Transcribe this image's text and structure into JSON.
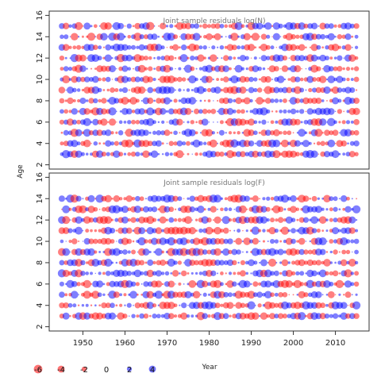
{
  "chart_data": {
    "type": "scatter",
    "xlabel": "Year",
    "ylabel": "Age",
    "xlim": [
      1942,
      2018
    ],
    "ylim": [
      1.6,
      16.4
    ],
    "x_ticks": [
      1950,
      1960,
      1970,
      1980,
      1990,
      2000,
      2010
    ],
    "y_ticks": [
      2,
      4,
      6,
      8,
      10,
      12,
      14,
      16
    ],
    "grid": false,
    "legend_position": "bottom-left",
    "colors": {
      "positive": "#0000ff",
      "negative": "#ff0000"
    },
    "panels": [
      {
        "title": "Joint sample residuals log(N)",
        "x_years": [
          1945,
          2015
        ],
        "ages": [
          3,
          15
        ],
        "summary": "bubble at every (year, age) cell; red = negative residual, blue = positive residual, area proportional to magnitude"
      },
      {
        "title": "Joint sample residuals log(F)",
        "x_years": [
          1945,
          2015
        ],
        "ages": [
          3,
          14
        ],
        "summary": "bubble at every (year, age) cell; red = negative residual, blue = positive residual, area proportional to magnitude"
      }
    ],
    "legend": [
      {
        "label": "-6",
        "value": -6
      },
      {
        "label": "-4",
        "value": -4
      },
      {
        "label": "-2",
        "value": -2
      },
      {
        "label": "0",
        "value": 0
      },
      {
        "label": "2",
        "value": 2
      },
      {
        "label": "4",
        "value": 4
      }
    ]
  }
}
